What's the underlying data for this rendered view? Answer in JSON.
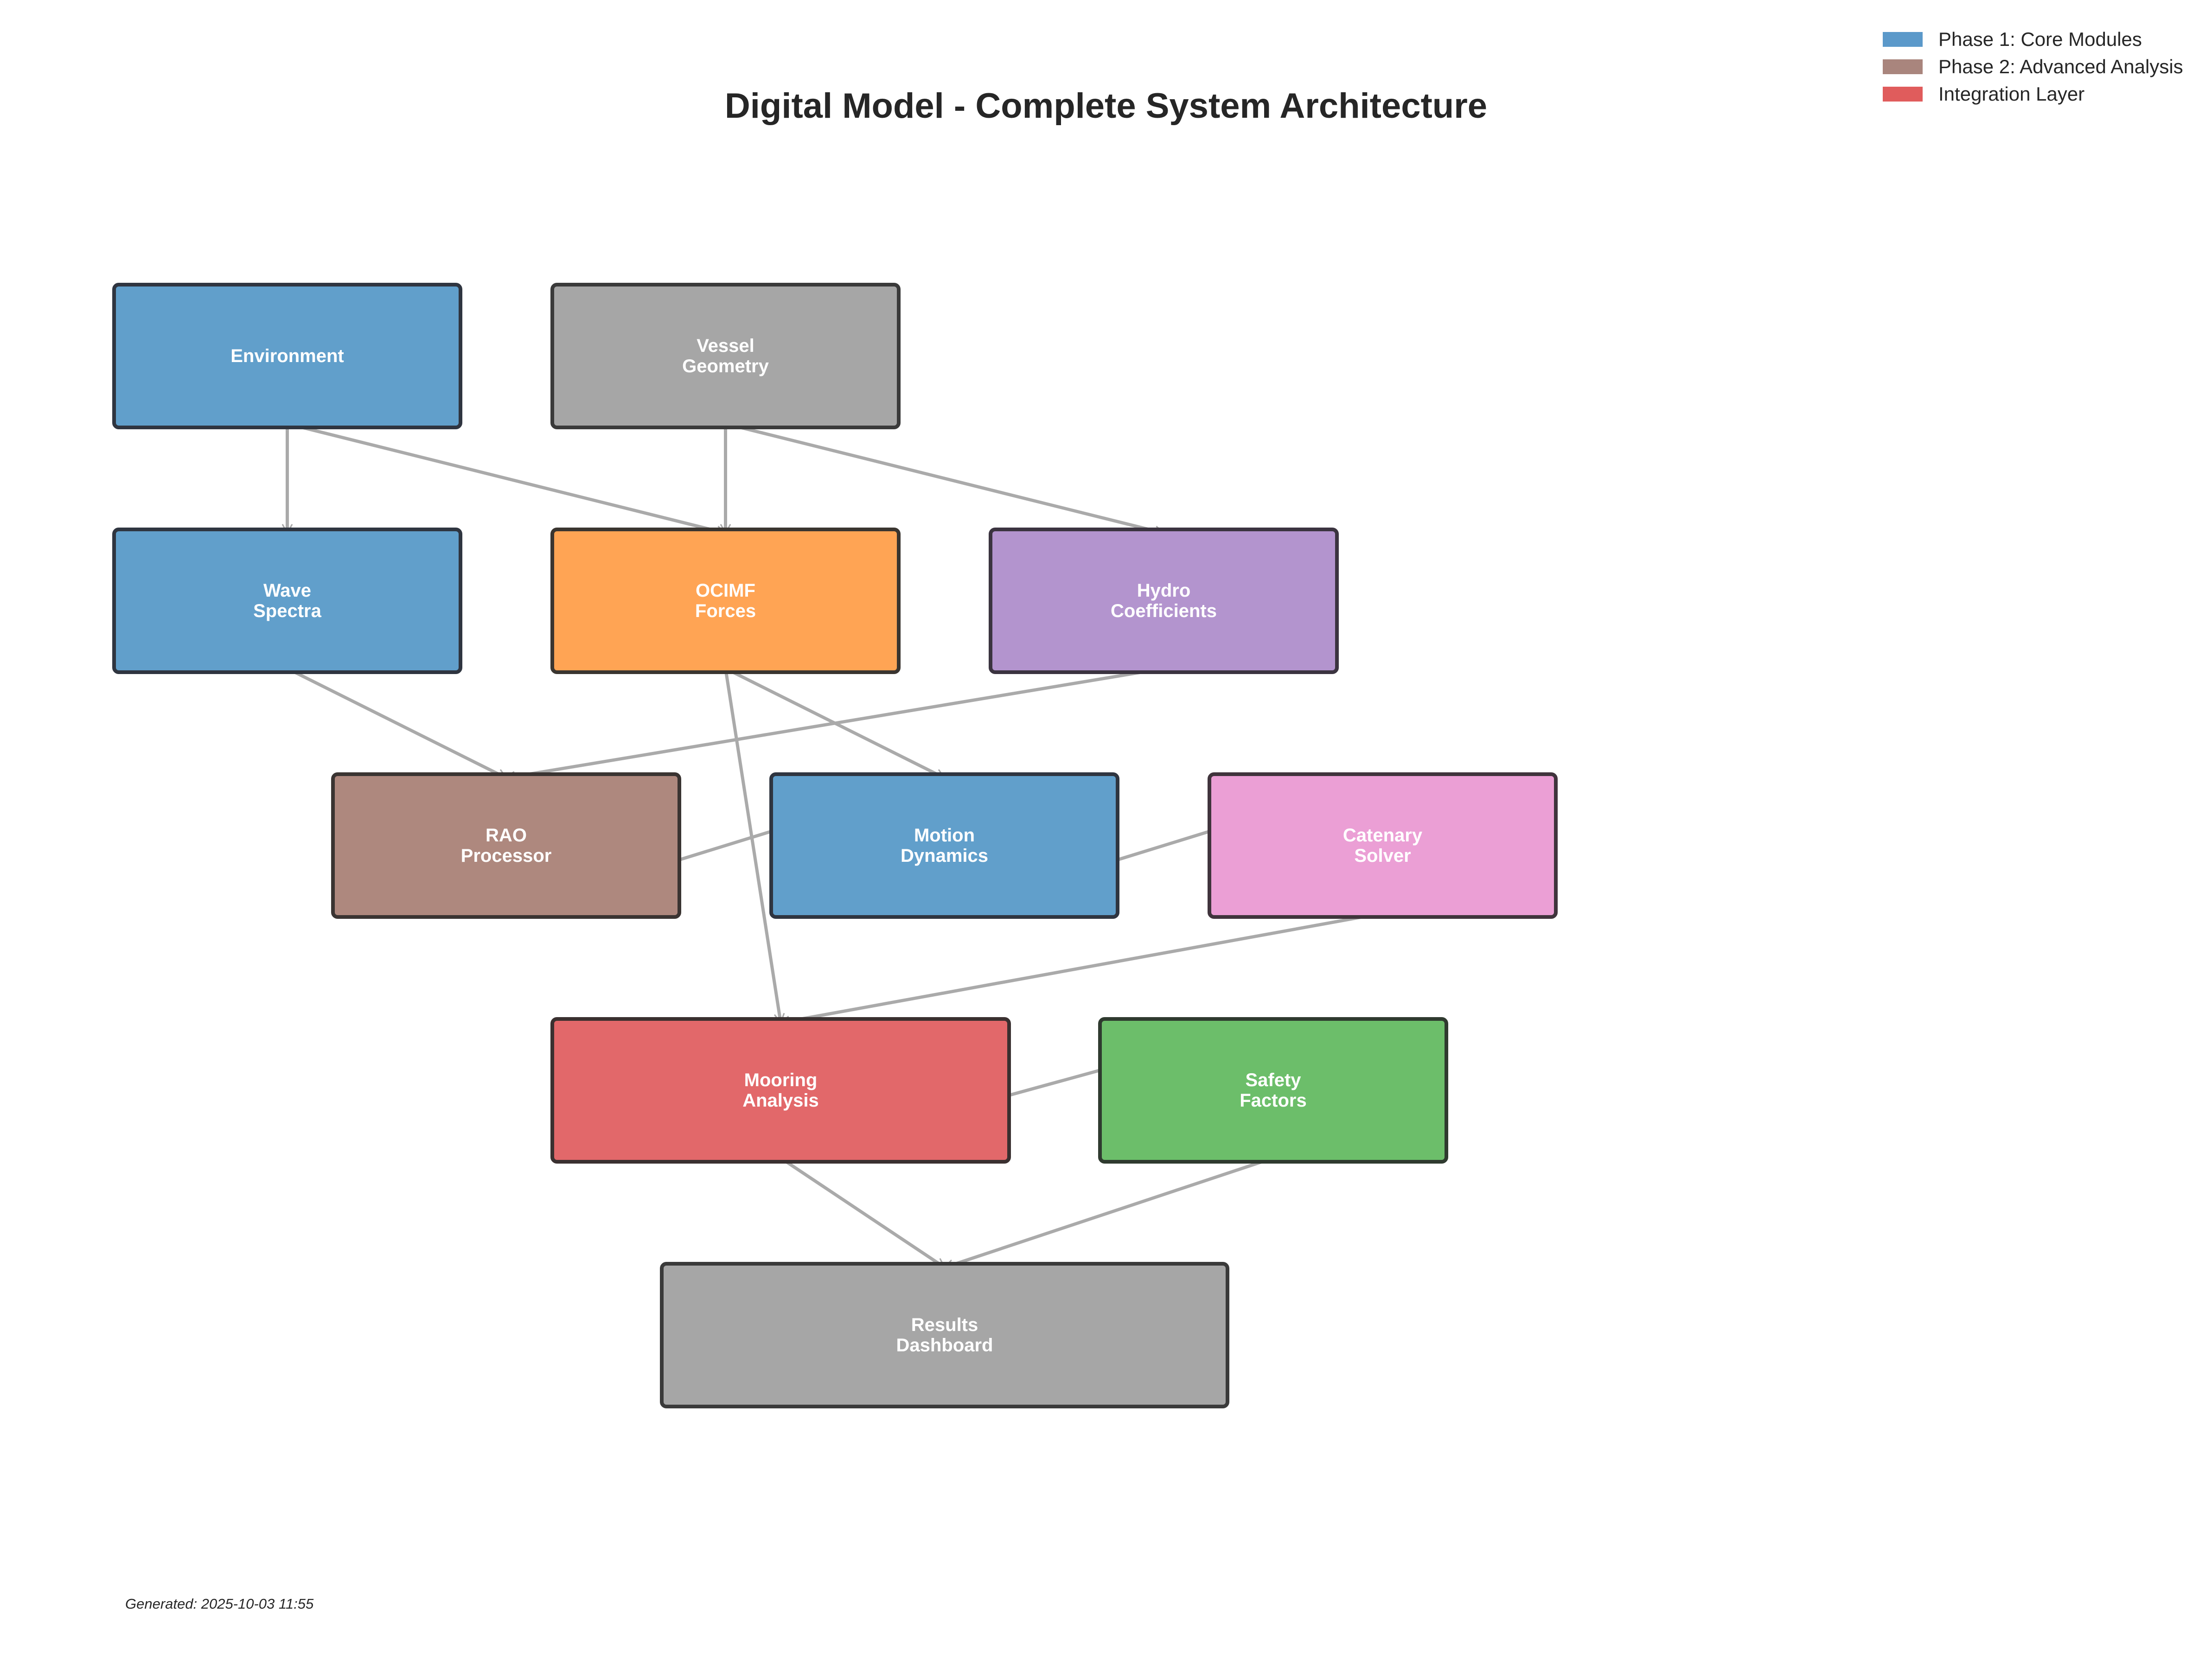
{
  "title": "Digital Model - Complete System Architecture",
  "legend": [
    {
      "label": "Phase 1: Core Modules",
      "color": "#4a8ec5"
    },
    {
      "label": "Phase 2: Advanced Analysis",
      "color": "#a07870"
    },
    {
      "label": "Integration Layer",
      "color": "#dd4b4b"
    }
  ],
  "nodes": [
    {
      "id": "environment",
      "label": "Environment",
      "fill": "#619fcb",
      "border": "#2f3540"
    },
    {
      "id": "vessel-geometry",
      "label": "Vessel\nGeometry",
      "fill": "#a6a6a6",
      "border": "#3a3a3a"
    },
    {
      "id": "wave-spectra",
      "label": "Wave\nSpectra",
      "fill": "#619fcb",
      "border": "#2f3540"
    },
    {
      "id": "ocimf-forces",
      "label": "OCIMF\nForces",
      "fill": "#ffa454",
      "border": "#3a3530"
    },
    {
      "id": "hydro-coefficients",
      "label": "Hydro\nCoefficients",
      "fill": "#b394ce",
      "border": "#3b3440"
    },
    {
      "id": "rao-processor",
      "label": "RAO\nProcessor",
      "fill": "#ae887e",
      "border": "#3a3432"
    },
    {
      "id": "motion-dynamics",
      "label": "Motion\nDynamics",
      "fill": "#619fcb",
      "border": "#2f3540"
    },
    {
      "id": "catenary-solver",
      "label": "Catenary\nSolver",
      "fill": "#eb9fd5",
      "border": "#40343c"
    },
    {
      "id": "mooring-analysis",
      "label": "Mooring\nAnalysis",
      "fill": "#e2686a",
      "border": "#3a3030"
    },
    {
      "id": "safety-factors",
      "label": "Safety\nFactors",
      "fill": "#6cbe6a",
      "border": "#2f3a2f"
    },
    {
      "id": "results-dashboard",
      "label": "Results\nDashboard",
      "fill": "#a6a6a6",
      "border": "#3a3a3a"
    }
  ],
  "edges": [
    {
      "from": "environment",
      "to": "wave-spectra"
    },
    {
      "from": "environment",
      "to": "ocimf-forces"
    },
    {
      "from": "vessel-geometry",
      "to": "ocimf-forces"
    },
    {
      "from": "vessel-geometry",
      "to": "hydro-coefficients"
    },
    {
      "from": "wave-spectra",
      "to": "rao-processor"
    },
    {
      "from": "ocimf-forces",
      "to": "motion-dynamics"
    },
    {
      "from": "ocimf-forces",
      "to": "mooring-analysis"
    },
    {
      "from": "hydro-coefficients",
      "to": "rao-processor"
    },
    {
      "from": "rao-processor",
      "to": "motion-dynamics"
    },
    {
      "from": "motion-dynamics",
      "to": "catenary-solver"
    },
    {
      "from": "catenary-solver",
      "to": "mooring-analysis"
    },
    {
      "from": "mooring-analysis",
      "to": "safety-factors"
    },
    {
      "from": "mooring-analysis",
      "to": "results-dashboard"
    },
    {
      "from": "safety-factors",
      "to": "results-dashboard"
    }
  ],
  "edge_color": "#aaaaaa",
  "footer": "Generated: 2025-10-03 11:55"
}
